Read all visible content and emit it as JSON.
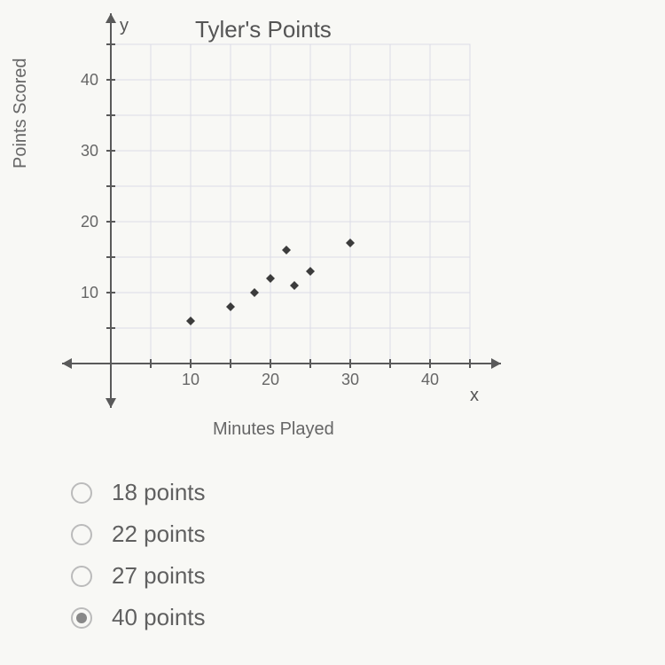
{
  "chart": {
    "type": "scatter",
    "title": "Tyler's Points",
    "xlabel": "Minutes Played",
    "ylabel": "Points Scored",
    "y_axis_letter": "y",
    "x_axis_letter": "x",
    "xlim": [
      0,
      45
    ],
    "ylim": [
      0,
      45
    ],
    "xtick_step": 5,
    "ytick_step": 5,
    "xtick_labels": [
      10,
      20,
      30,
      40
    ],
    "ytick_labels": [
      10,
      20,
      30,
      40
    ],
    "grid_color": "#dcdce6",
    "axis_color": "#5a5a5a",
    "background_color": "#f8f8f5",
    "label_fontsize": 20,
    "title_fontsize": 26,
    "tick_fontsize": 18,
    "marker_shape": "diamond",
    "marker_size": 10,
    "marker_color": "#3c3c3c",
    "points": [
      {
        "x": 10,
        "y": 6
      },
      {
        "x": 15,
        "y": 8
      },
      {
        "x": 18,
        "y": 10
      },
      {
        "x": 20,
        "y": 12
      },
      {
        "x": 22,
        "y": 16
      },
      {
        "x": 23,
        "y": 11
      },
      {
        "x": 25,
        "y": 13
      },
      {
        "x": 30,
        "y": 17
      }
    ]
  },
  "options": [
    {
      "label": "18 points",
      "selected": false
    },
    {
      "label": "22 points",
      "selected": false
    },
    {
      "label": "27 points",
      "selected": false
    },
    {
      "label": "40 points",
      "selected": true
    }
  ]
}
